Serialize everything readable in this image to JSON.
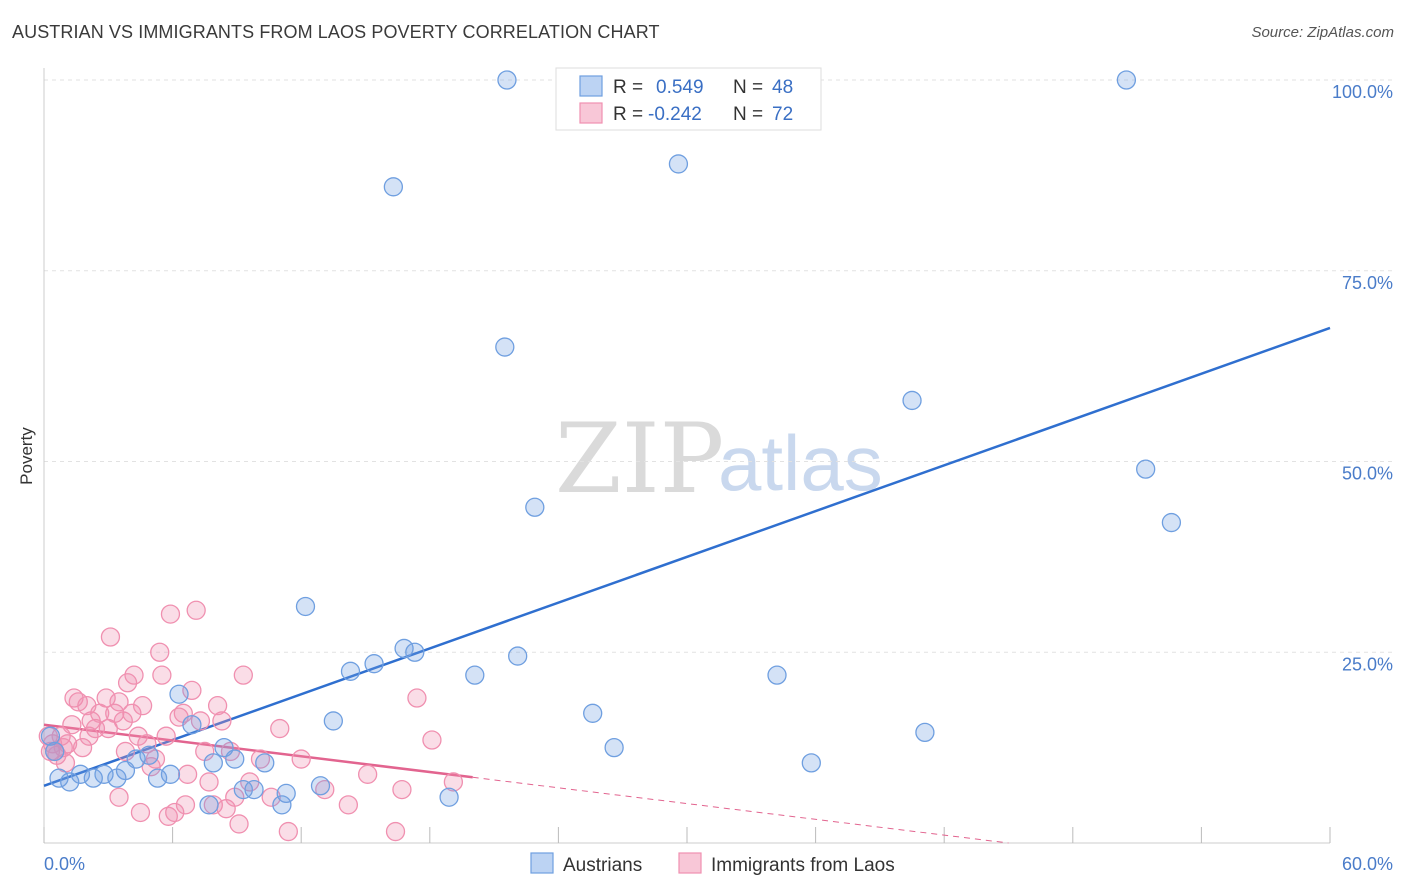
{
  "title": "AUSTRIAN VS IMMIGRANTS FROM LAOS POVERTY CORRELATION CHART",
  "source": "Source: ZipAtlas.com",
  "watermark": {
    "zip": "ZIP",
    "atlas": "atlas"
  },
  "chart_data": {
    "type": "scatter",
    "ylabel": "Poverty",
    "xlim": [
      0,
      60
    ],
    "ylim": [
      0,
      100
    ],
    "x_tick_labels": [
      "0.0%",
      "60.0%"
    ],
    "y_ticks": [
      {
        "value": 100,
        "label": "100.0%"
      },
      {
        "value": 75,
        "label": "75.0%"
      },
      {
        "value": 50,
        "label": "50.0%"
      },
      {
        "value": 25,
        "label": "25.0%"
      }
    ],
    "legend": {
      "rows": [
        {
          "r_label": "R =",
          "r_value": "0.549",
          "n_label": "N =",
          "n_value": "48"
        },
        {
          "r_label": "R =",
          "r_value": "-0.242",
          "n_label": "N =",
          "n_value": "72"
        }
      ]
    },
    "series": [
      {
        "name": "Austrians",
        "color": "#6f9fe0",
        "line_color": "#2f6fcf",
        "trend": {
          "x0": 0,
          "y0": 7.5,
          "x1": 60,
          "y1": 67.5,
          "solid_until": 60
        },
        "points": [
          [
            0.3,
            14
          ],
          [
            0.5,
            12
          ],
          [
            0.7,
            8.5
          ],
          [
            1.2,
            8
          ],
          [
            1.7,
            9
          ],
          [
            2.3,
            8.5
          ],
          [
            2.8,
            9
          ],
          [
            3.4,
            8.5
          ],
          [
            3.8,
            9.5
          ],
          [
            4.3,
            11
          ],
          [
            4.9,
            11.5
          ],
          [
            5.3,
            8.5
          ],
          [
            5.9,
            9
          ],
          [
            6.3,
            19.5
          ],
          [
            6.9,
            15.5
          ],
          [
            7.7,
            5
          ],
          [
            7.9,
            10.5
          ],
          [
            8.4,
            12.5
          ],
          [
            8.9,
            11
          ],
          [
            9.3,
            7
          ],
          [
            9.8,
            7
          ],
          [
            10.3,
            10.5
          ],
          [
            11.1,
            5
          ],
          [
            11.3,
            6.5
          ],
          [
            12.2,
            31
          ],
          [
            12.9,
            7.5
          ],
          [
            13.5,
            16
          ],
          [
            14.3,
            22.5
          ],
          [
            15.4,
            23.5
          ],
          [
            16.3,
            86
          ],
          [
            16.8,
            25.5
          ],
          [
            17.3,
            25
          ],
          [
            18.9,
            6
          ],
          [
            20.1,
            22
          ],
          [
            21.5,
            65
          ],
          [
            21.6,
            100
          ],
          [
            22.1,
            24.5
          ],
          [
            22.9,
            44
          ],
          [
            25.6,
            17
          ],
          [
            26.6,
            12.5
          ],
          [
            29.6,
            89
          ],
          [
            34.2,
            22
          ],
          [
            35.8,
            10.5
          ],
          [
            40.5,
            58
          ],
          [
            41.1,
            14.5
          ],
          [
            50.5,
            100
          ],
          [
            51.4,
            49
          ],
          [
            52.6,
            42
          ]
        ]
      },
      {
        "name": "Immigrants from Laos",
        "color": "#f090b0",
        "line_color": "#e2648f",
        "trend": {
          "x0": 0,
          "y0": 15.5,
          "x1": 45,
          "y1": 0,
          "solid_until": 20
        },
        "points": [
          [
            0.2,
            14
          ],
          [
            0.3,
            12
          ],
          [
            0.4,
            13
          ],
          [
            0.6,
            11.5
          ],
          [
            0.8,
            14
          ],
          [
            0.9,
            12.5
          ],
          [
            1.1,
            13
          ],
          [
            1.3,
            15.5
          ],
          [
            1.4,
            19
          ],
          [
            1.6,
            18.5
          ],
          [
            1.8,
            12.5
          ],
          [
            2.1,
            14
          ],
          [
            2.2,
            16
          ],
          [
            2.4,
            15
          ],
          [
            2.6,
            17
          ],
          [
            2.9,
            19
          ],
          [
            3.0,
            15
          ],
          [
            3.1,
            27
          ],
          [
            3.3,
            17
          ],
          [
            3.5,
            18.5
          ],
          [
            3.7,
            16
          ],
          [
            3.8,
            12
          ],
          [
            3.9,
            21
          ],
          [
            4.1,
            17
          ],
          [
            4.2,
            22
          ],
          [
            4.4,
            14
          ],
          [
            4.6,
            18
          ],
          [
            4.8,
            13
          ],
          [
            5.0,
            10
          ],
          [
            5.2,
            11
          ],
          [
            5.4,
            25
          ],
          [
            5.5,
            22
          ],
          [
            5.7,
            14
          ],
          [
            5.9,
            30
          ],
          [
            6.1,
            4
          ],
          [
            6.3,
            16.5
          ],
          [
            6.5,
            17
          ],
          [
            6.7,
            9
          ],
          [
            6.9,
            20
          ],
          [
            7.1,
            30.5
          ],
          [
            7.3,
            16
          ],
          [
            7.5,
            12
          ],
          [
            7.7,
            8
          ],
          [
            7.9,
            5
          ],
          [
            8.1,
            18
          ],
          [
            8.3,
            16
          ],
          [
            8.5,
            4.5
          ],
          [
            8.7,
            12
          ],
          [
            8.9,
            6
          ],
          [
            9.1,
            2.5
          ],
          [
            9.3,
            22
          ],
          [
            9.6,
            8
          ],
          [
            10.1,
            11
          ],
          [
            10.6,
            6
          ],
          [
            11.0,
            15
          ],
          [
            11.4,
            1.5
          ],
          [
            12.0,
            11
          ],
          [
            13.1,
            7
          ],
          [
            14.2,
            5
          ],
          [
            15.1,
            9
          ],
          [
            16.4,
            1.5
          ],
          [
            16.7,
            7
          ],
          [
            17.4,
            19
          ],
          [
            18.1,
            13.5
          ],
          [
            19.1,
            8
          ],
          [
            3.5,
            6
          ],
          [
            4.5,
            4
          ],
          [
            5.8,
            3.5
          ],
          [
            6.6,
            5
          ],
          [
            1.0,
            10.5
          ],
          [
            0.5,
            12
          ],
          [
            2.0,
            18
          ]
        ]
      }
    ]
  },
  "bottom_legend": [
    "Austrians",
    "Immigrants from Laos"
  ]
}
